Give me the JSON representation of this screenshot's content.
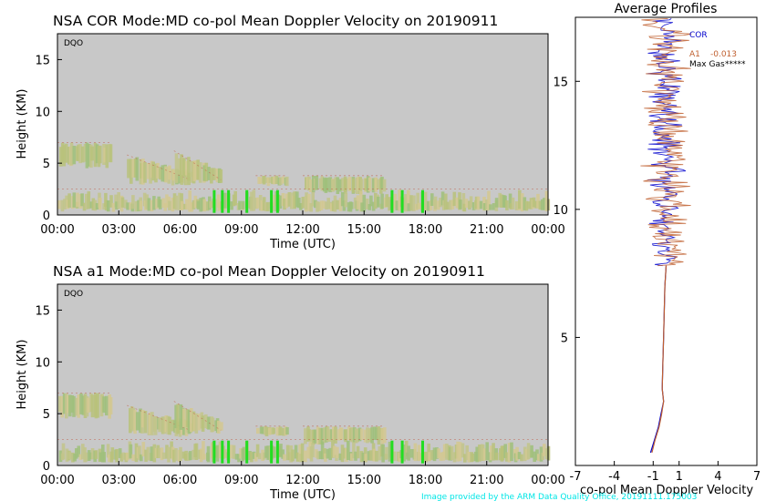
{
  "chart_data": [
    {
      "type": "heatmap",
      "title": "NSA COR   Mode:MD   co-pol Mean Doppler Velocity   on 20190911",
      "tag": "DQO",
      "xlabel": "Time (UTC)",
      "ylabel": "Height (KM)",
      "xticks": [
        "00:00",
        "03:00",
        "06:00",
        "09:00",
        "12:00",
        "15:00",
        "18:00",
        "21:00",
        "00:00"
      ],
      "yticks": [
        0,
        5,
        10,
        15
      ],
      "xlim_hours": [
        0,
        24
      ],
      "ylim_km": [
        0,
        17.5
      ],
      "background": "#c8c8c8",
      "cloud_colors": [
        "#c2c48a",
        "#b8c27a",
        "#9fc07a",
        "#d4c890"
      ],
      "cloud_layers": [
        {
          "t_start": 0.0,
          "t_end": 2.6,
          "h_bottom": 4.5,
          "h_top": 7.0
        },
        {
          "t_start": 3.4,
          "t_end": 6.5,
          "h_bottom": 3.0,
          "h_top": 5.8
        },
        {
          "t_start": 5.7,
          "t_end": 8.0,
          "h_bottom": 3.0,
          "h_top": 6.2
        },
        {
          "t_start": 9.7,
          "t_end": 11.2,
          "h_bottom": 2.8,
          "h_top": 3.8
        },
        {
          "t_start": 12.0,
          "t_end": 16.0,
          "h_bottom": 2.0,
          "h_top": 3.8
        },
        {
          "t_start": 0.0,
          "t_end": 24.0,
          "h_bottom": 0.3,
          "h_top": 2.5
        }
      ],
      "precip_columns_hours": [
        7.6,
        8.0,
        8.3,
        9.2,
        10.4,
        10.7,
        16.3,
        16.8,
        17.8
      ]
    },
    {
      "type": "heatmap",
      "title": "NSA a1   Mode:MD   co-pol Mean Doppler Velocity   on 20190911",
      "tag": "DQO",
      "xlabel": "Time (UTC)",
      "ylabel": "Height (KM)",
      "xticks": [
        "00:00",
        "03:00",
        "06:00",
        "09:00",
        "12:00",
        "15:00",
        "18:00",
        "21:00",
        "00:00"
      ],
      "yticks": [
        0,
        5,
        10,
        15
      ],
      "xlim_hours": [
        0,
        24
      ],
      "ylim_km": [
        0,
        17.5
      ],
      "background": "#c8c8c8",
      "cloud_colors": [
        "#c2c48a",
        "#b8c27a",
        "#9fc07a",
        "#d4c890"
      ],
      "cloud_layers": [
        {
          "t_start": 0.0,
          "t_end": 2.6,
          "h_bottom": 4.5,
          "h_top": 7.0
        },
        {
          "t_start": 3.4,
          "t_end": 6.5,
          "h_bottom": 3.0,
          "h_top": 5.8
        },
        {
          "t_start": 5.7,
          "t_end": 8.0,
          "h_bottom": 3.0,
          "h_top": 6.2
        },
        {
          "t_start": 9.7,
          "t_end": 11.2,
          "h_bottom": 2.8,
          "h_top": 3.8
        },
        {
          "t_start": 12.0,
          "t_end": 16.0,
          "h_bottom": 2.0,
          "h_top": 3.8
        },
        {
          "t_start": 0.0,
          "t_end": 24.0,
          "h_bottom": 0.3,
          "h_top": 2.5
        }
      ],
      "precip_columns_hours": [
        7.6,
        8.0,
        8.3,
        9.2,
        10.4,
        10.7,
        16.3,
        16.8,
        17.8
      ]
    },
    {
      "type": "line",
      "title": "Average Profiles",
      "xlabel": "co-pol Mean Doppler Velocity",
      "xticks": [
        -7,
        -4,
        -1,
        1,
        4,
        7
      ],
      "xlim": [
        -7,
        7
      ],
      "yticks": [
        5,
        10,
        15
      ],
      "ylim_km": [
        0,
        17.5
      ],
      "legend": [
        {
          "name": "COR",
          "color": "#0000cc",
          "value": ""
        },
        {
          "name": "A1",
          "color": "#c06030",
          "value": "-0.013"
        },
        {
          "name": "Max Gas",
          "color": "#000000",
          "value": "*****"
        }
      ],
      "series": [
        {
          "name": "COR",
          "color": "#0000cc",
          "profile": [
            [
              0.5,
              -1.2
            ],
            [
              1,
              -0.9
            ],
            [
              1.5,
              -0.6
            ],
            [
              2,
              -0.4
            ],
            [
              2.5,
              -0.2
            ],
            [
              3,
              -0.3
            ],
            [
              4,
              -0.25
            ],
            [
              5,
              -0.2
            ],
            [
              6,
              -0.15
            ],
            [
              7,
              -0.1
            ],
            [
              7.8,
              0.0
            ]
          ]
        },
        {
          "name": "A1",
          "color": "#c06030",
          "profile": [
            [
              0.5,
              -1.1
            ],
            [
              1,
              -0.85
            ],
            [
              1.5,
              -0.55
            ],
            [
              2,
              -0.35
            ],
            [
              2.5,
              -0.2
            ],
            [
              3,
              -0.3
            ],
            [
              4,
              -0.25
            ],
            [
              5,
              -0.2
            ],
            [
              6,
              -0.15
            ],
            [
              7,
              -0.1
            ],
            [
              7.8,
              0.0
            ]
          ]
        }
      ],
      "noisy_region_km": [
        7.8,
        17.5
      ]
    }
  ],
  "credit": "Image provided by the ARM Data Quality Office, 20191111.175003"
}
